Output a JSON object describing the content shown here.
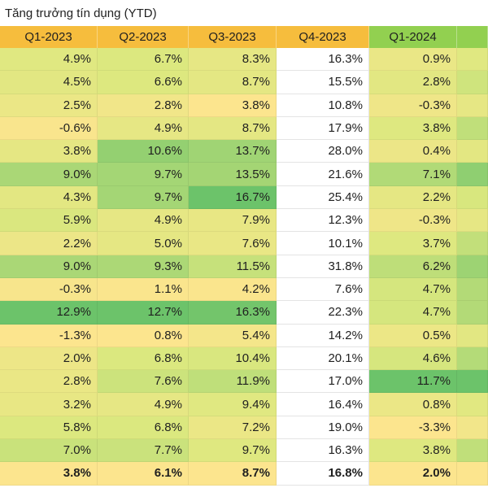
{
  "title": "Tăng trưởng tín dụng (YTD)",
  "headers": [
    "Q1-2023",
    "Q2-2023",
    "Q3-2023",
    "Q4-2023",
    "Q1-2024"
  ],
  "rows": [
    [
      "4.9%",
      "6.7%",
      "8.3%",
      "16.3%",
      "0.9%"
    ],
    [
      "4.5%",
      "6.6%",
      "8.7%",
      "15.5%",
      "2.8%"
    ],
    [
      "2.5%",
      "2.8%",
      "3.8%",
      "10.8%",
      "-0.3%"
    ],
    [
      "-0.6%",
      "4.9%",
      "8.7%",
      "17.9%",
      "3.8%"
    ],
    [
      "3.8%",
      "10.6%",
      "13.7%",
      "28.0%",
      "0.4%"
    ],
    [
      "9.0%",
      "9.7%",
      "13.5%",
      "21.6%",
      "7.1%"
    ],
    [
      "4.3%",
      "9.7%",
      "16.7%",
      "25.4%",
      "2.2%"
    ],
    [
      "5.9%",
      "4.9%",
      "7.9%",
      "12.3%",
      "-0.3%"
    ],
    [
      "2.2%",
      "5.0%",
      "7.6%",
      "10.1%",
      "3.7%"
    ],
    [
      "9.0%",
      "9.3%",
      "11.5%",
      "31.8%",
      "6.2%"
    ],
    [
      "-0.3%",
      "1.1%",
      "4.2%",
      "7.6%",
      "4.7%"
    ],
    [
      "12.9%",
      "12.7%",
      "16.3%",
      "22.3%",
      "4.7%"
    ],
    [
      "-1.3%",
      "0.8%",
      "5.4%",
      "14.2%",
      "0.5%"
    ],
    [
      "2.0%",
      "6.8%",
      "10.4%",
      "20.1%",
      "4.6%"
    ],
    [
      "2.8%",
      "7.6%",
      "11.9%",
      "17.0%",
      "11.7%"
    ],
    [
      "3.2%",
      "4.9%",
      "9.4%",
      "16.4%",
      "0.8%"
    ],
    [
      "5.8%",
      "6.8%",
      "7.2%",
      "19.0%",
      "-3.3%"
    ],
    [
      "7.0%",
      "7.7%",
      "9.7%",
      "16.3%",
      "3.8%"
    ]
  ],
  "total_row": [
    "3.8%",
    "6.1%",
    "8.7%",
    "16.8%",
    "2.0%"
  ],
  "colors": {
    "header_orange": "#f6bd3d",
    "header_green": "#92d050",
    "low": "#fce58e",
    "mid": "#dce87f",
    "high": "#6cc36a"
  }
}
